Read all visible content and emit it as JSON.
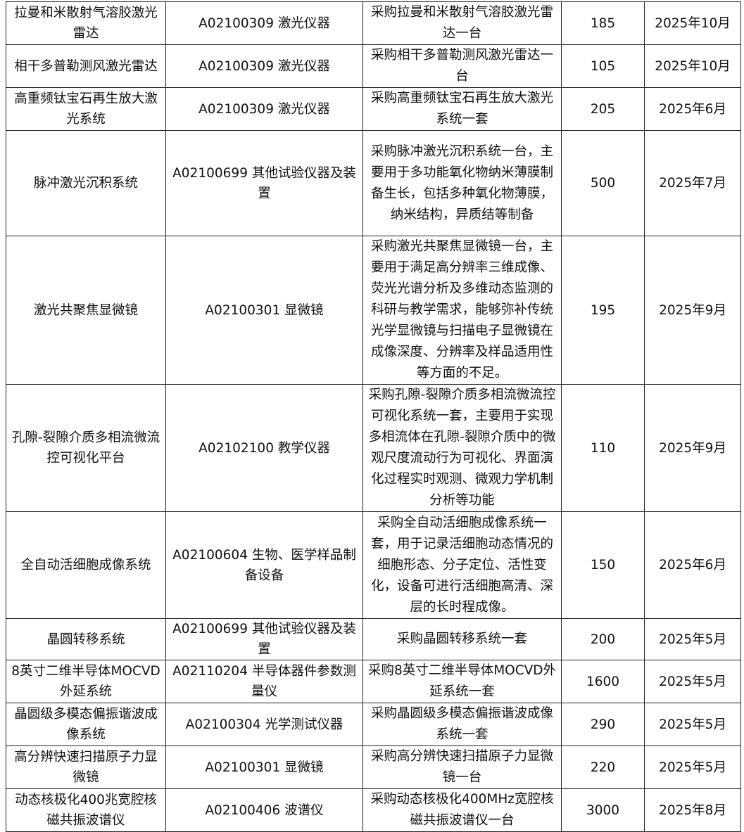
{
  "rows": [
    {
      "name": "拉曼和米散射气溶胶激光雷达",
      "category": "A02100309 激光仪器",
      "description": "采购拉曼和米散射气溶胶激光雷达一台",
      "budget": "185",
      "date": "2025年10月"
    },
    {
      "name": "相干多普勒测风激光雷达",
      "category": "A02100309 激光仪器",
      "description": "采购相干多普勒测风激光雷达一台",
      "budget": "105",
      "date": "2025年10月"
    },
    {
      "name": "高重频钛宝石再生放大激光系统",
      "category": "A02100309 激光仪器",
      "description": "采购高重频钛宝石再生放大激光系统一套",
      "budget": "205",
      "date": "2025年6月"
    },
    {
      "name": "脉冲激光沉积系统",
      "category": "A02100699 其他试验仪器及装置",
      "description": "采购脉冲激光沉积系统一台，主要用于多功能氧化物纳米薄膜制备生长，包括多种氧化物薄膜，纳米结构，异质结等制备",
      "budget": "500",
      "date": "2025年7月"
    },
    {
      "name": "激光共聚焦显微镜",
      "category": "A02100301 显微镜",
      "description": "采购激光共聚焦显微镜一台，主要用于满足高分辨率三维成像、荧光光谱分析及多维动态监测的科研与教学需求，能够弥补传统光学显微镜与扫描电子显微镜在成像深度、分辨率及样品适用性等方面的不足。",
      "budget": "195",
      "date": "2025年9月"
    },
    {
      "name": "孔隙-裂隙介质多相流微流控可视化平台",
      "category": "A02102100 教学仪器",
      "description": "采购孔隙-裂隙介质多相流微流控可视化系统一套，主要用于实现多相流体在孔隙-裂隙介质中的微观尺度流动行为可视化、界面演化过程实时观测、微观力学机制分析等功能",
      "budget": "110",
      "date": "2025年9月"
    },
    {
      "name": "全自动活细胞成像系统",
      "category": "A02100604 生物、医学样品制备设备",
      "description": "采购全自动活细胞成像系统一套，用于记录活细胞动态情况的细胞形态、分子定位、活性变化，设备可进行活细胞高清、深层的长时程成像。",
      "budget": "150",
      "date": "2025年6月"
    },
    {
      "name": "晶圆转移系统",
      "category": "A02100699 其他试验仪器及装置",
      "description": "采购晶圆转移系统一套",
      "budget": "200",
      "date": "2025年5月"
    },
    {
      "name": "8英寸二维半导体MOCVD外延系统",
      "category": "A02110204 半导体器件参数测量仪",
      "description": "采购8英寸二维半导体MOCVD外延系统一套",
      "budget": "1600",
      "date": "2025年5月"
    },
    {
      "name": "晶圆级多模态偏振谐波成像系统",
      "category": "A02100304 光学测试仪器",
      "description": "采购晶圆级多模态偏振谐波成像系统一套",
      "budget": "290",
      "date": "2025年5月"
    },
    {
      "name": "高分辨快速扫描原子力显微镜",
      "category": "A02100301 显微镜",
      "description": "采购高分辨快速扫描原子力显微镜一台",
      "budget": "220",
      "date": "2025年5月"
    },
    {
      "name": "动态核极化400兆宽腔核磁共振波谱仪",
      "category": "A02100406 波谱仪",
      "description": "采购动态核极化400MHz宽腔核磁共振波谱仪一台",
      "budget": "3000",
      "date": "2025年8月"
    }
  ]
}
